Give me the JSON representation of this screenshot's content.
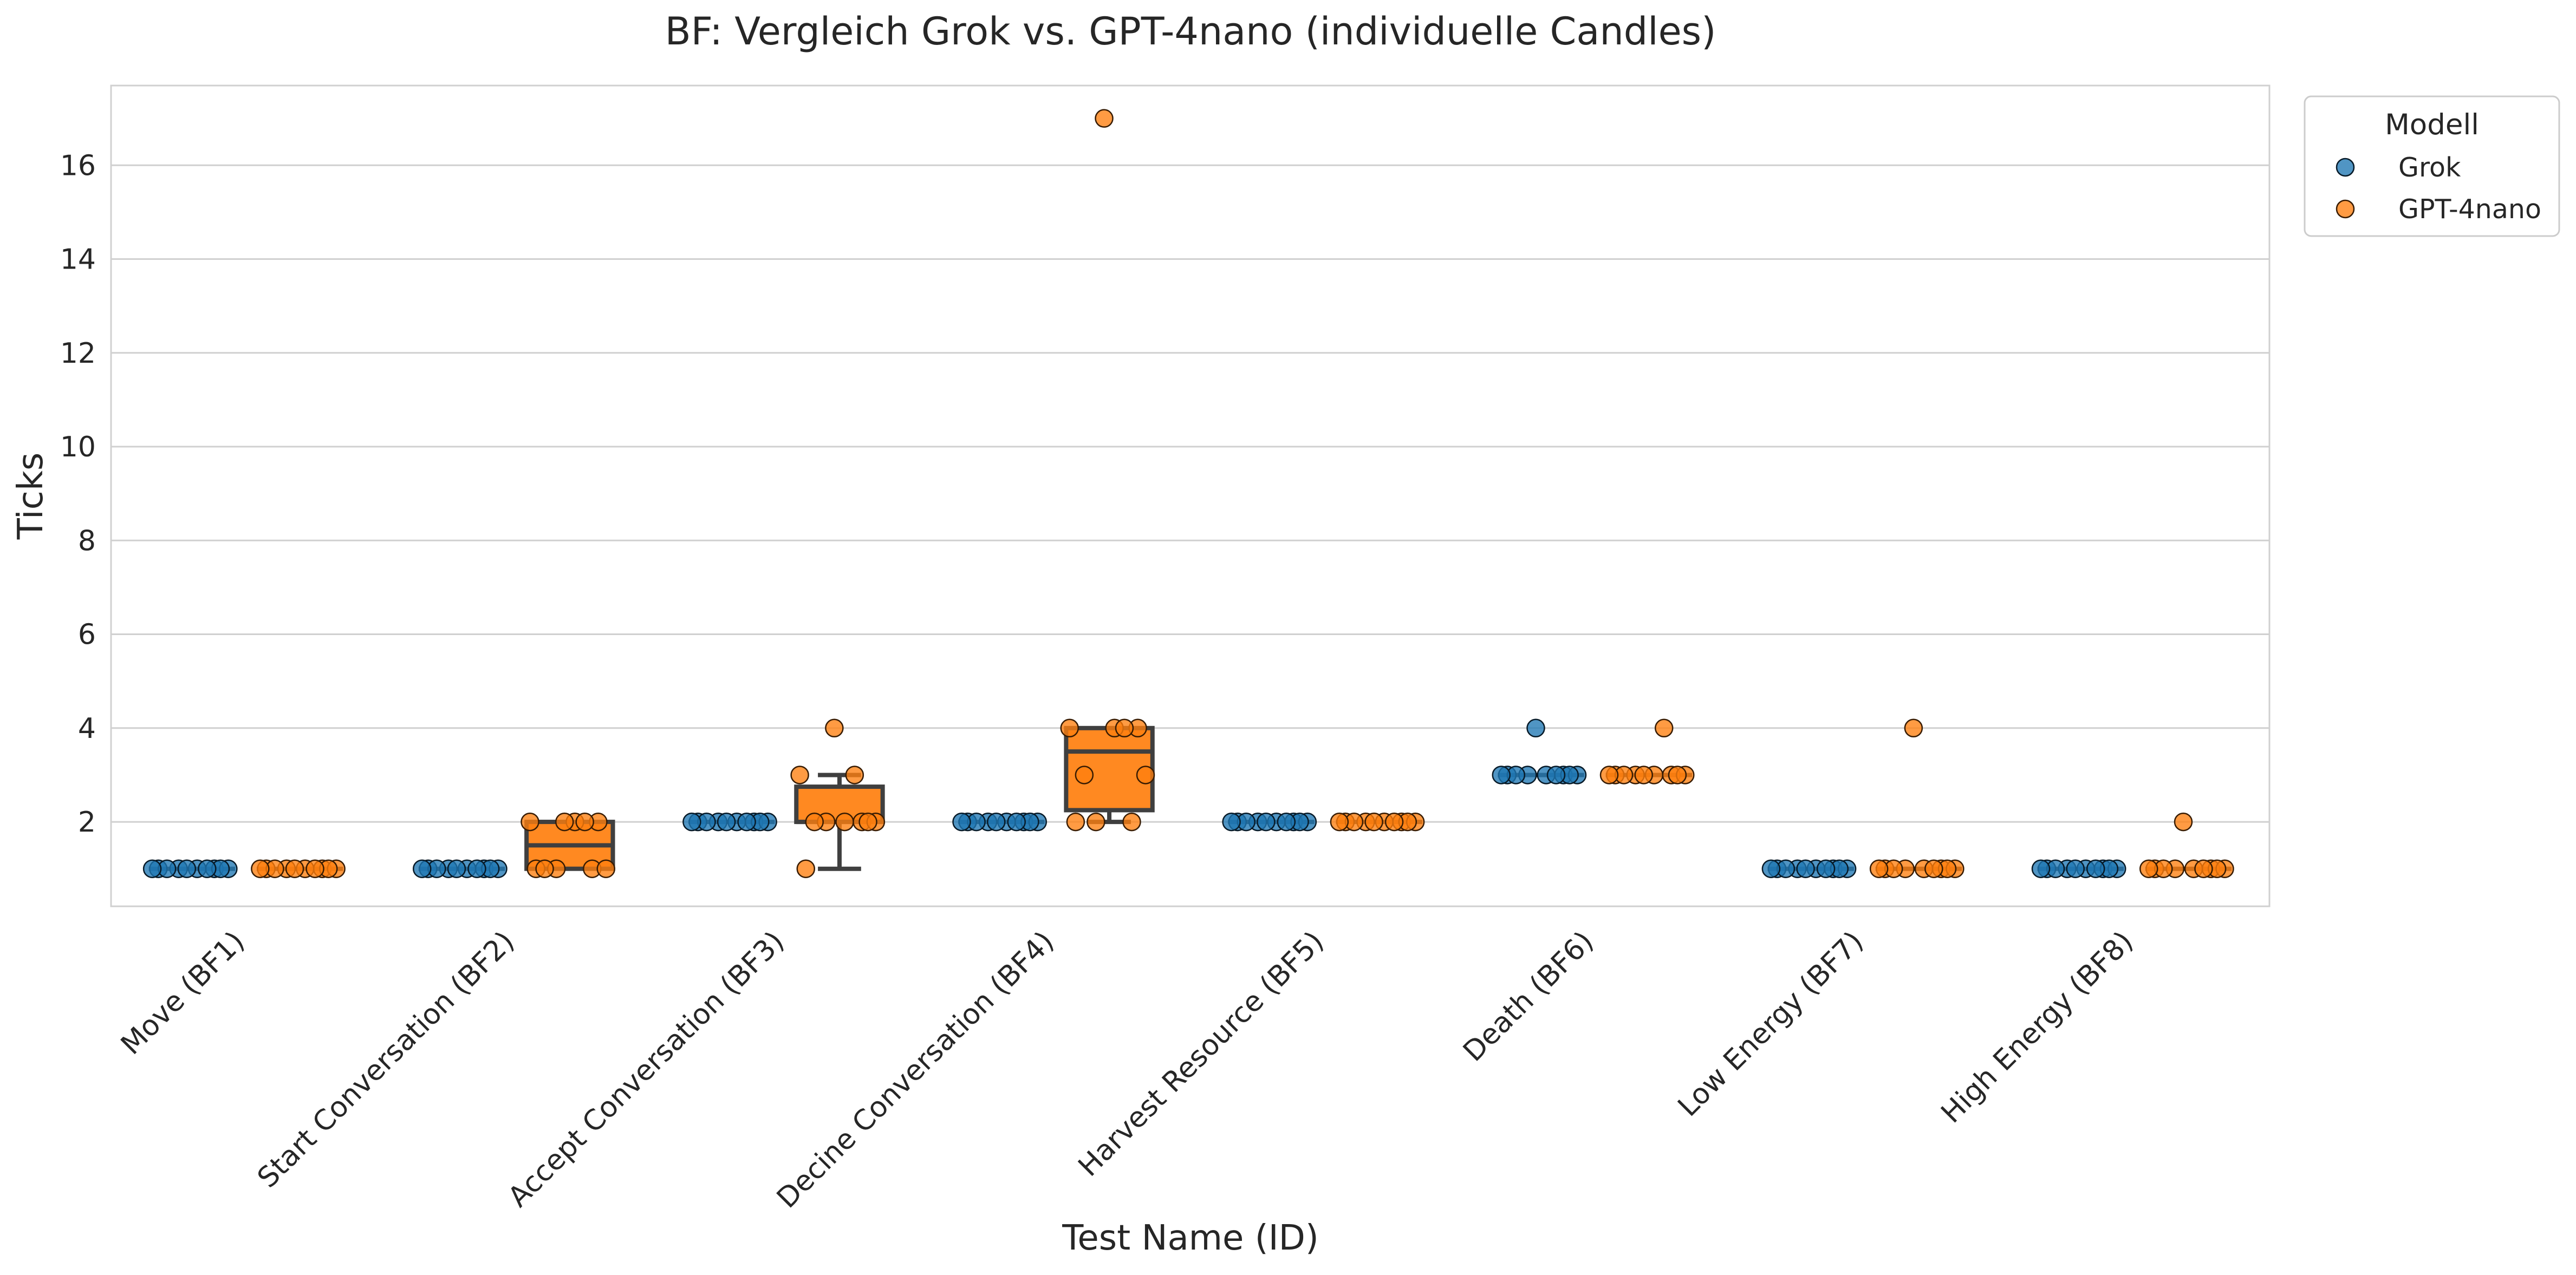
{
  "chart_data": {
    "type": "box+strip",
    "title": "BF: Vergleich Grok vs. GPT-4nano (individuelle Candles)",
    "xlabel": "Test Name (ID)",
    "ylabel": "Ticks",
    "ylim": [
      0.2,
      17.7
    ],
    "yticks": [
      2,
      4,
      6,
      8,
      10,
      12,
      14,
      16
    ],
    "grid": "horizontal",
    "categories": [
      "Move (BF1)",
      "Start Conversation (BF2)",
      "Accept Conversation (BF3)",
      "Decine Conversation (BF4)",
      "Harvest Resource (BF5)",
      "Death (BF6)",
      "Low Energy (BF7)",
      "High Energy (BF8)"
    ],
    "legend": {
      "title": "Modell",
      "placement": "outside-top-right"
    },
    "series": [
      {
        "name": "Grok",
        "color": "#1f77b4",
        "values": [
          [
            1,
            1,
            1,
            1,
            1,
            1,
            1,
            1,
            1,
            1
          ],
          [
            1,
            1,
            1,
            1,
            1,
            1,
            1,
            1,
            1,
            1
          ],
          [
            2,
            2,
            2,
            2,
            2,
            2,
            2,
            2,
            2,
            2
          ],
          [
            2,
            2,
            2,
            2,
            2,
            2,
            2,
            2,
            2,
            2
          ],
          [
            2,
            2,
            2,
            2,
            2,
            2,
            2,
            2,
            2,
            2
          ],
          [
            3,
            3,
            3,
            3,
            3,
            3,
            3,
            3,
            3,
            4
          ],
          [
            1,
            1,
            1,
            1,
            1,
            1,
            1,
            1,
            1,
            1
          ],
          [
            1,
            1,
            1,
            1,
            1,
            1,
            1,
            1,
            1,
            1
          ]
        ]
      },
      {
        "name": "GPT-4nano",
        "color": "#ff7f0e",
        "values": [
          [
            1,
            1,
            1,
            1,
            1,
            1,
            1,
            1,
            1,
            1
          ],
          [
            1,
            1,
            1,
            1,
            1,
            2,
            2,
            2,
            2,
            2
          ],
          [
            1,
            2,
            2,
            2,
            2,
            2,
            2,
            3,
            3,
            4
          ],
          [
            2,
            2,
            2,
            3,
            3,
            4,
            4,
            4,
            4,
            17
          ],
          [
            2,
            2,
            2,
            2,
            2,
            2,
            2,
            2,
            2,
            2
          ],
          [
            3,
            3,
            3,
            3,
            3,
            3,
            3,
            3,
            4,
            3
          ],
          [
            1,
            1,
            1,
            1,
            1,
            1,
            1,
            1,
            1,
            4
          ],
          [
            1,
            1,
            1,
            1,
            1,
            1,
            1,
            1,
            1,
            2
          ]
        ]
      }
    ]
  }
}
